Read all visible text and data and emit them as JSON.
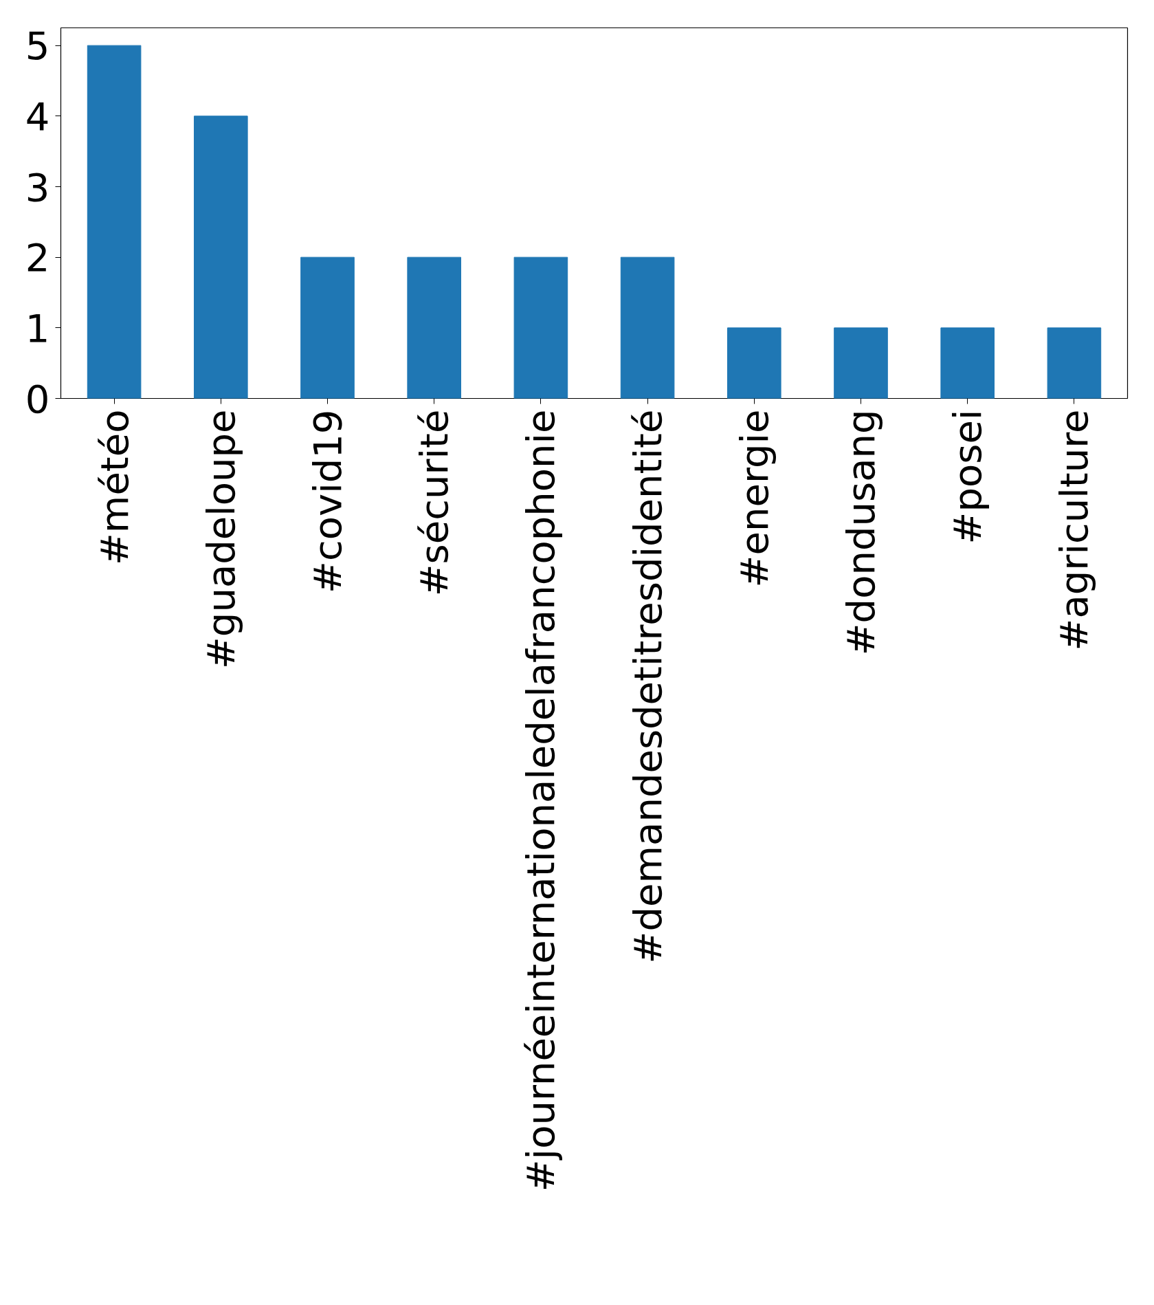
{
  "chart_data": {
    "type": "bar",
    "categories": [
      "#météo",
      "#guadeloupe",
      "#covid19",
      "#sécurité",
      "#journéeinternationaledelafrancophonie",
      "#demandesdetitresdidentité",
      "#energie",
      "#dondusang",
      "#posei",
      "#agriculture"
    ],
    "values": [
      5,
      4,
      2,
      2,
      2,
      2,
      1,
      1,
      1,
      1
    ],
    "color": "#1f77b4",
    "ylim": [
      0,
      5.25
    ],
    "yticks": [
      0,
      1,
      2,
      3,
      4,
      5
    ]
  }
}
